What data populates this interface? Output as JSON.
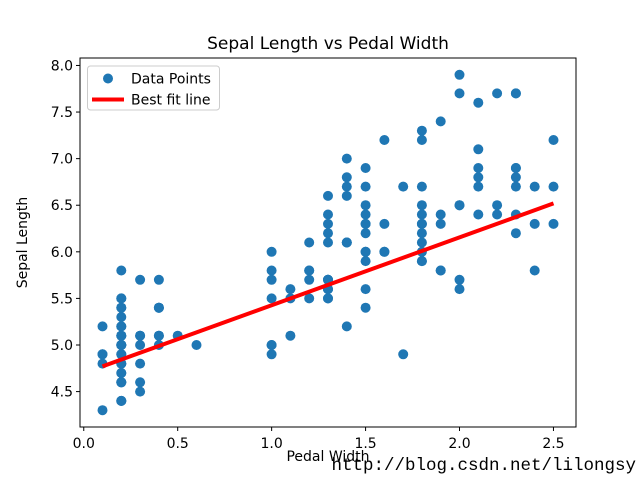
{
  "watermark": {
    "text": "http://blog.csdn.net/lilongsy",
    "color": "#dcdcdc"
  },
  "chart_data": {
    "type": "scatter",
    "title": "Sepal Length vs Pedal Width",
    "xlabel": "Pedal Width",
    "ylabel": "Sepal Length",
    "xlim": [
      -0.02,
      2.62
    ],
    "ylim": [
      4.12,
      8.08
    ],
    "xticks": [
      0.0,
      0.5,
      1.0,
      1.5,
      2.0,
      2.5
    ],
    "yticks": [
      4.5,
      5.0,
      5.5,
      6.0,
      6.5,
      7.0,
      7.5,
      8.0
    ],
    "grid": false,
    "background": "#ffffff",
    "legend": {
      "position": "upper left",
      "entries": [
        {
          "label": "Data Points",
          "type": "marker",
          "color": "#1f77b4"
        },
        {
          "label": "Best fit line",
          "type": "line",
          "color": "#ff0000"
        }
      ]
    },
    "series": [
      {
        "name": "Data Points",
        "type": "scatter",
        "color": "#1f77b4",
        "marker": "circle",
        "x": [
          0.2,
          0.2,
          0.2,
          0.2,
          0.2,
          0.4,
          0.3,
          0.2,
          0.2,
          0.1,
          0.2,
          0.2,
          0.1,
          0.1,
          0.2,
          0.4,
          0.4,
          0.3,
          0.3,
          0.3,
          0.2,
          0.4,
          0.2,
          0.5,
          0.2,
          0.2,
          0.4,
          0.2,
          0.2,
          0.2,
          0.2,
          0.4,
          0.1,
          0.2,
          0.2,
          0.2,
          0.2,
          0.1,
          0.2,
          0.2,
          0.3,
          0.3,
          0.2,
          0.6,
          0.4,
          0.3,
          0.2,
          0.2,
          0.2,
          0.2,
          1.4,
          1.5,
          1.5,
          1.3,
          1.5,
          1.3,
          1.6,
          1.0,
          1.3,
          1.4,
          1.0,
          1.5,
          1.0,
          1.4,
          1.3,
          1.4,
          1.5,
          1.0,
          1.5,
          1.1,
          1.8,
          1.3,
          1.5,
          1.2,
          1.3,
          1.4,
          1.4,
          1.7,
          1.5,
          1.0,
          1.1,
          1.0,
          1.2,
          1.6,
          1.5,
          1.6,
          1.5,
          1.3,
          1.3,
          1.3,
          1.2,
          1.4,
          1.2,
          1.0,
          1.3,
          1.2,
          1.3,
          1.3,
          1.1,
          1.3,
          2.5,
          1.9,
          2.1,
          1.8,
          2.2,
          2.1,
          1.7,
          1.8,
          1.8,
          2.5,
          2.0,
          1.9,
          2.1,
          2.0,
          2.4,
          2.3,
          1.8,
          2.2,
          2.3,
          1.5,
          2.3,
          2.0,
          2.0,
          1.8,
          2.1,
          1.8,
          1.8,
          1.8,
          2.1,
          1.6,
          1.9,
          2.0,
          2.2,
          1.5,
          1.4,
          2.3,
          2.4,
          1.8,
          1.8,
          2.1,
          2.4,
          2.3,
          1.9,
          2.3,
          2.5,
          2.3,
          1.9,
          2.0,
          2.3,
          1.8
        ],
        "y": [
          5.1,
          4.9,
          4.7,
          4.6,
          5.0,
          5.4,
          4.6,
          5.0,
          4.4,
          4.9,
          5.4,
          4.8,
          4.8,
          4.3,
          5.8,
          5.7,
          5.4,
          5.1,
          5.7,
          5.1,
          5.4,
          5.1,
          4.6,
          5.1,
          4.8,
          5.0,
          5.0,
          5.2,
          5.2,
          4.7,
          4.8,
          5.4,
          5.2,
          5.5,
          4.9,
          5.0,
          5.5,
          4.9,
          4.4,
          5.1,
          5.0,
          4.5,
          4.4,
          5.0,
          5.1,
          4.8,
          5.1,
          4.6,
          5.3,
          5.0,
          7.0,
          6.4,
          6.9,
          5.5,
          6.5,
          5.7,
          6.3,
          4.9,
          6.6,
          5.2,
          5.0,
          5.9,
          6.0,
          6.1,
          5.6,
          6.7,
          5.6,
          5.8,
          6.2,
          5.6,
          5.9,
          6.1,
          6.3,
          6.1,
          6.4,
          6.6,
          6.8,
          6.7,
          6.0,
          5.7,
          5.5,
          5.5,
          5.8,
          6.0,
          5.4,
          6.0,
          6.7,
          6.3,
          5.6,
          5.5,
          5.5,
          6.1,
          5.8,
          5.0,
          5.6,
          5.7,
          5.7,
          6.2,
          5.1,
          5.7,
          6.3,
          5.8,
          7.1,
          6.3,
          6.5,
          7.6,
          4.9,
          7.3,
          6.7,
          7.2,
          6.5,
          6.4,
          6.8,
          5.7,
          5.8,
          6.4,
          6.5,
          7.7,
          7.7,
          6.0,
          6.9,
          5.6,
          7.7,
          6.3,
          6.7,
          7.2,
          6.2,
          6.1,
          6.4,
          7.2,
          7.4,
          7.9,
          6.4,
          6.3,
          6.1,
          7.7,
          6.3,
          6.4,
          6.0,
          6.9,
          6.7,
          6.9,
          5.8,
          6.8,
          6.7,
          6.7,
          6.3,
          6.5,
          6.2,
          5.9
        ]
      },
      {
        "name": "Best fit line",
        "type": "line",
        "color": "#ff0000",
        "x": [
          0.1,
          2.5
        ],
        "y": [
          4.77,
          6.52
        ]
      }
    ]
  }
}
